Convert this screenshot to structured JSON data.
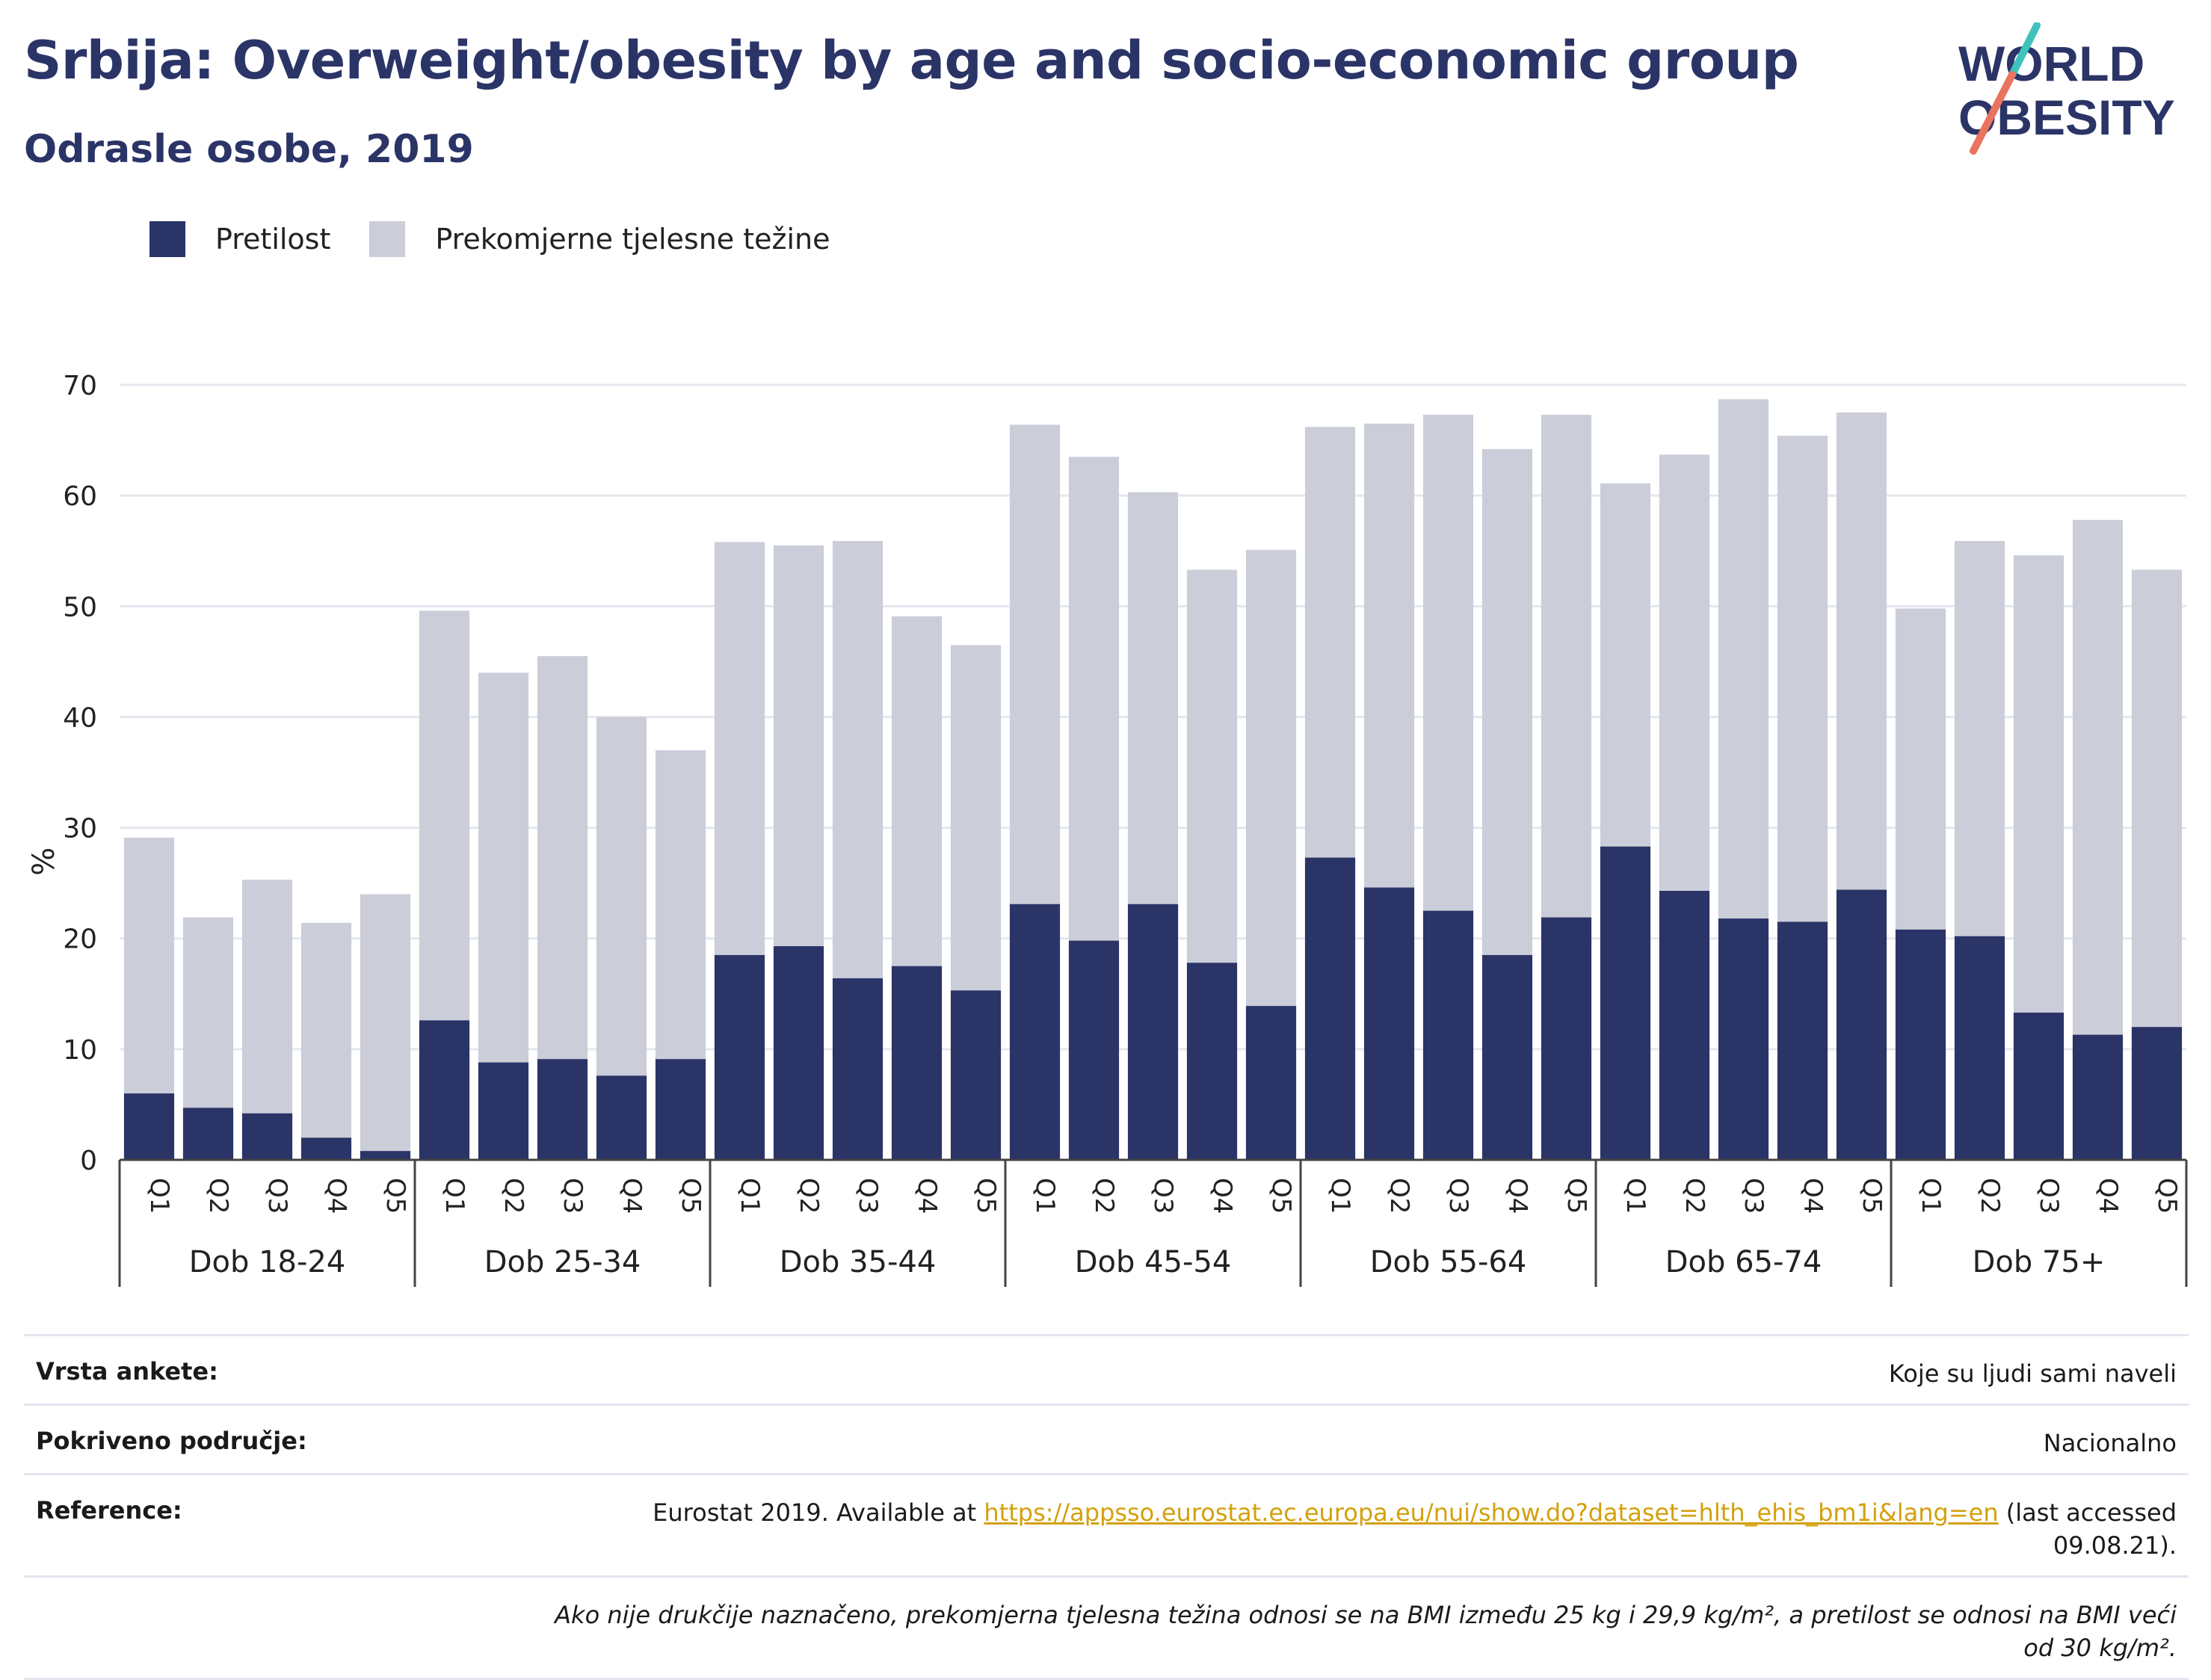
{
  "header": {
    "title": "Srbija: Overweight/obesity by age and socio-economic group",
    "subtitle": "Odrasle osobe, 2019",
    "logo_line1": "WORLD",
    "logo_line2": "OBESITY"
  },
  "legend": {
    "obesity": "Pretilost",
    "overweight": "Prekomjerne tjelesne težine"
  },
  "colors": {
    "obesity": "#2b3467",
    "overweight": "#cbcdd9",
    "grid": "#e6e7ee",
    "logo_accent_teal": "#3fc2bb",
    "logo_accent_coral": "#e8735f"
  },
  "chart_data": {
    "type": "bar",
    "stacked": true,
    "ylabel": "%",
    "ylim": [
      0,
      70
    ],
    "yticks": [
      0,
      10,
      20,
      30,
      40,
      50,
      60,
      70
    ],
    "grid": true,
    "legend_position": "top-left",
    "groups": [
      {
        "label": "Dob 18-24",
        "categories": [
          "Q1",
          "Q2",
          "Q3",
          "Q4",
          "Q5"
        ],
        "obesity": [
          6.0,
          4.7,
          4.2,
          2.0,
          0.8
        ],
        "total": [
          29.1,
          21.9,
          25.3,
          21.4,
          24.0
        ]
      },
      {
        "label": "Dob 25-34",
        "categories": [
          "Q1",
          "Q2",
          "Q3",
          "Q4",
          "Q5"
        ],
        "obesity": [
          12.6,
          8.8,
          9.1,
          7.6,
          9.1
        ],
        "total": [
          49.6,
          44.0,
          45.5,
          40.0,
          37.0
        ]
      },
      {
        "label": "Dob 35-44",
        "categories": [
          "Q1",
          "Q2",
          "Q3",
          "Q4",
          "Q5"
        ],
        "obesity": [
          18.5,
          19.3,
          16.4,
          17.5,
          15.3
        ],
        "total": [
          55.8,
          55.5,
          55.9,
          49.1,
          46.5
        ]
      },
      {
        "label": "Dob 45-54",
        "categories": [
          "Q1",
          "Q2",
          "Q3",
          "Q4",
          "Q5"
        ],
        "obesity": [
          23.1,
          19.8,
          23.1,
          17.8,
          13.9
        ],
        "total": [
          66.4,
          63.5,
          60.3,
          53.3,
          55.1
        ]
      },
      {
        "label": "Dob 55-64",
        "categories": [
          "Q1",
          "Q2",
          "Q3",
          "Q4",
          "Q5"
        ],
        "obesity": [
          27.3,
          24.6,
          22.5,
          18.5,
          21.9
        ],
        "total": [
          66.2,
          66.5,
          67.3,
          64.2,
          67.3
        ]
      },
      {
        "label": "Dob 65-74",
        "categories": [
          "Q1",
          "Q2",
          "Q3",
          "Q4",
          "Q5"
        ],
        "obesity": [
          28.3,
          24.3,
          21.8,
          21.5,
          24.4
        ],
        "total": [
          61.1,
          63.7,
          68.7,
          65.4,
          67.5
        ]
      },
      {
        "label": "Dob 75+",
        "categories": [
          "Q1",
          "Q2",
          "Q3",
          "Q4",
          "Q5"
        ],
        "obesity": [
          20.8,
          20.2,
          13.3,
          11.3,
          12.0
        ],
        "total": [
          49.8,
          55.9,
          54.6,
          57.8,
          53.3
        ]
      }
    ]
  },
  "info": {
    "survey_label": "Vrsta ankete:",
    "survey_value": "Koje su ljudi sami naveli",
    "area_label": "Pokriveno područje:",
    "area_value": "Nacionalno",
    "ref_label": "Reference:",
    "ref_prefix": "Eurostat 2019. Available at ",
    "ref_link": "https://appsso.eurostat.ec.europa.eu/nui/show.do?dataset=hlth_ehis_bm1i&lang=en",
    "ref_suffix": " (last accessed 09.08.21).",
    "note": "Ako nije drukčije naznačeno, prekomjerna tjelesna težina odnosi se na BMI između 25 kg i 29,9 kg/m², a pretilost se odnosi na BMI veći od 30 kg/m²."
  }
}
